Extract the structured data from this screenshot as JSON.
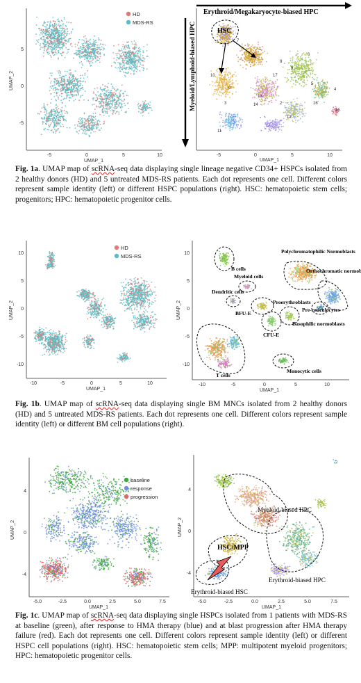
{
  "colors": {
    "hd": "#e07a72",
    "mds": "#5bbcc4",
    "baseline": "#3aa83a",
    "response": "#6f8ee0",
    "progression": "#e3646a"
  },
  "fig1a": {
    "left": {
      "legend": [
        "HD",
        "MDS-RS"
      ],
      "xlabel": "UMAP_1",
      "ylabel": "UMAP_2",
      "xticks": [
        "-5",
        "0",
        "5",
        "10"
      ],
      "yticks": [
        "5",
        "0",
        "-5"
      ]
    },
    "right": {
      "top_arrow": "Erythroid/Megakaryocyte-biased HPC",
      "side_arrow": "Myeloid/Lymphoid-biased HPC",
      "hsc": "HSC",
      "xlabel": "UMAP_1",
      "ylabel": "UMAP_2",
      "xticks": [
        "-5",
        "0",
        "5",
        "10"
      ],
      "yticks": [
        "5",
        "0",
        "-5"
      ],
      "clusters": [
        "0",
        "1",
        "2",
        "3",
        "4",
        "5",
        "6",
        "7",
        "8",
        "9",
        "10",
        "11",
        "12",
        "13",
        "14",
        "15",
        "16",
        "17"
      ]
    },
    "caption_lead": "Fig. 1a",
    "caption_text_a": ". UMAP map of ",
    "caption_word": "scRNA",
    "caption_text_b": "-seq data displaying single lineage negative CD34+ HSPCs isolated from 2 healthy donors (HD) and 5 untreated MDS-RS patients. Each dot represents one cell. Different colors represent sample identity (left) or different HSPC populations (right). HSC: hematopoietic stem cells; progenitors; HPC: hematopoietic progenitor cells."
  },
  "fig1b": {
    "left": {
      "legend": [
        "HD",
        "MDS-RS"
      ],
      "xlabel": "UMAP_1",
      "ylabel": "UMAP_2",
      "xticks": [
        "-10",
        "-5",
        "0",
        "5",
        "10"
      ],
      "yticks": [
        "10",
        "5",
        "0",
        "-5",
        "-10"
      ]
    },
    "right": {
      "xlabel": "UMAP_1",
      "ylabel": "UMAP_2",
      "xticks": [
        "-10",
        "-5",
        "0",
        "5",
        "10"
      ],
      "yticks": [
        "10",
        "5",
        "0",
        "-5",
        "-10"
      ],
      "labels": [
        "B cells",
        "Dendritic cells",
        "Myeloid cells",
        "BFU-E",
        "Polychromatophilic Normoblasts",
        "Orthochromatic normoblasts",
        "Proerythroblasts",
        "Pre-reticulocytes",
        "Basophilic normoblasts",
        "CFU-E",
        "Monocytic cells",
        "T cells"
      ]
    },
    "caption_lead": "Fig. 1b",
    "caption_text_a": ". UMAP map of ",
    "caption_word": "scRNA",
    "caption_text_b": "-seq data displaying single BM MNCs isolated from 2 healthy donors (HD) and 5 untreated MDS-RS patients. Each dot represents one cell. Different colors represent sample identity (left) or different BM cell populations (right)."
  },
  "fig1c": {
    "left": {
      "legend": [
        "baseline",
        "response",
        "progression"
      ],
      "xlabel": "UMAP_1",
      "ylabel": "UMAP_2",
      "xticks": [
        "-5.0",
        "-2.5",
        "0.0",
        "2.5",
        "5.0",
        "7.5"
      ],
      "yticks": [
        "4",
        "0",
        "-4"
      ]
    },
    "right": {
      "xlabel": "UMAP_1",
      "ylabel": "UMAP_2",
      "xticks": [
        "-5.0",
        "-2.5",
        "0.0",
        "2.5",
        "5.0",
        "7.5"
      ],
      "yticks": [
        "4",
        "0",
        "-4"
      ],
      "labels": [
        "Myeloid-biased HPC",
        "HSC/MPP",
        "Erythroid-biased HPC",
        "Erythroid-biased HSC"
      ]
    },
    "caption_lead": "Fig. 1c",
    "caption_text_a": ". UMAP map of ",
    "caption_word": "scRNA",
    "caption_text_b": "-seq data displaying single HSPCs isolated from 1 patients with MDS-RS at baseline (green), after response to HMA therapy (blue) and at blast progression after HMA therapy failure (red). Each dot represents one cell. Different colors represent sample identity (left) or different HSPC cell populations (right). HSC: hematopoietic stem cells; MPP: multipotent myeloid progenitors; HPC: hematopoietic progenitor cells."
  }
}
